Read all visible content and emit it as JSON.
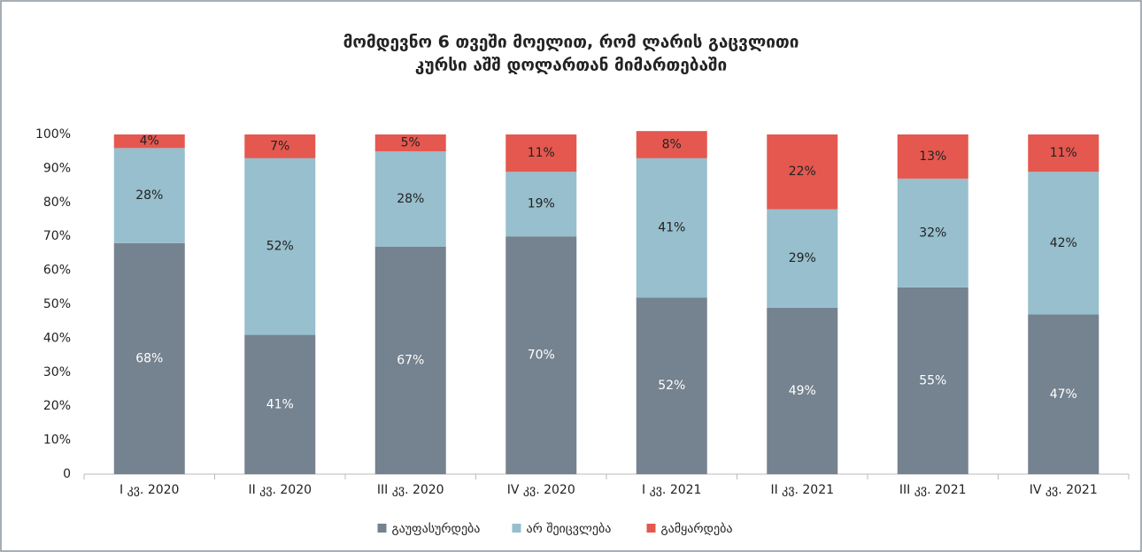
{
  "chart_data": {
    "type": "stacked_bar",
    "title": [
      "მომდევნო 6 თვეში მოელით, რომ ლარის გაცვლითი",
      "კურსი აშშ დოლართან მიმართებაში"
    ],
    "categories": [
      "I კვ. 2020",
      "II კვ. 2020",
      "III კვ. 2020",
      "IV კვ. 2020",
      "I კვ. 2021",
      "II კვ. 2021",
      "III კვ. 2021",
      "IV კვ. 2021"
    ],
    "series": [
      {
        "name": "გაუფასურდება",
        "color": "#75828f",
        "label_color": "#ffffff",
        "values": [
          68,
          41,
          67,
          70,
          52,
          49,
          55,
          47
        ],
        "value_labels": [
          "68%",
          "41%",
          "67%",
          "70%",
          "52%",
          "49%",
          "55%",
          "47%"
        ]
      },
      {
        "name": "არ შეიცვლება",
        "color": "#97bfcd",
        "label_color": "#222222",
        "values": [
          28,
          52,
          28,
          19,
          41,
          29,
          32,
          42
        ],
        "value_labels": [
          "28%",
          "52%",
          "28%",
          "19%",
          "41%",
          "29%",
          "32%",
          "42%"
        ]
      },
      {
        "name": "გამყარდება",
        "color": "#e5584f",
        "label_color": "#222222",
        "values": [
          4,
          7,
          5,
          11,
          8,
          22,
          13,
          11
        ],
        "value_labels": [
          "4%",
          "7%",
          "5%",
          "11%",
          "8%",
          "22%",
          "13%",
          "11%"
        ]
      }
    ],
    "ylim": [
      0,
      100
    ],
    "yticks": [
      0,
      {
        "value": 10,
        "label": "10%"
      },
      {
        "value": 20,
        "label": "20%"
      },
      {
        "value": 30,
        "label": "30%"
      },
      {
        "value": 40,
        "label": "40%"
      },
      {
        "value": 50,
        "label": "50%"
      },
      {
        "value": 60,
        "label": "60%"
      },
      {
        "value": 70,
        "label": "70%"
      },
      {
        "value": 80,
        "label": "80%"
      },
      {
        "value": 90,
        "label": "90%"
      },
      {
        "value": 100,
        "label": "100%"
      }
    ],
    "legend": "bottom"
  }
}
